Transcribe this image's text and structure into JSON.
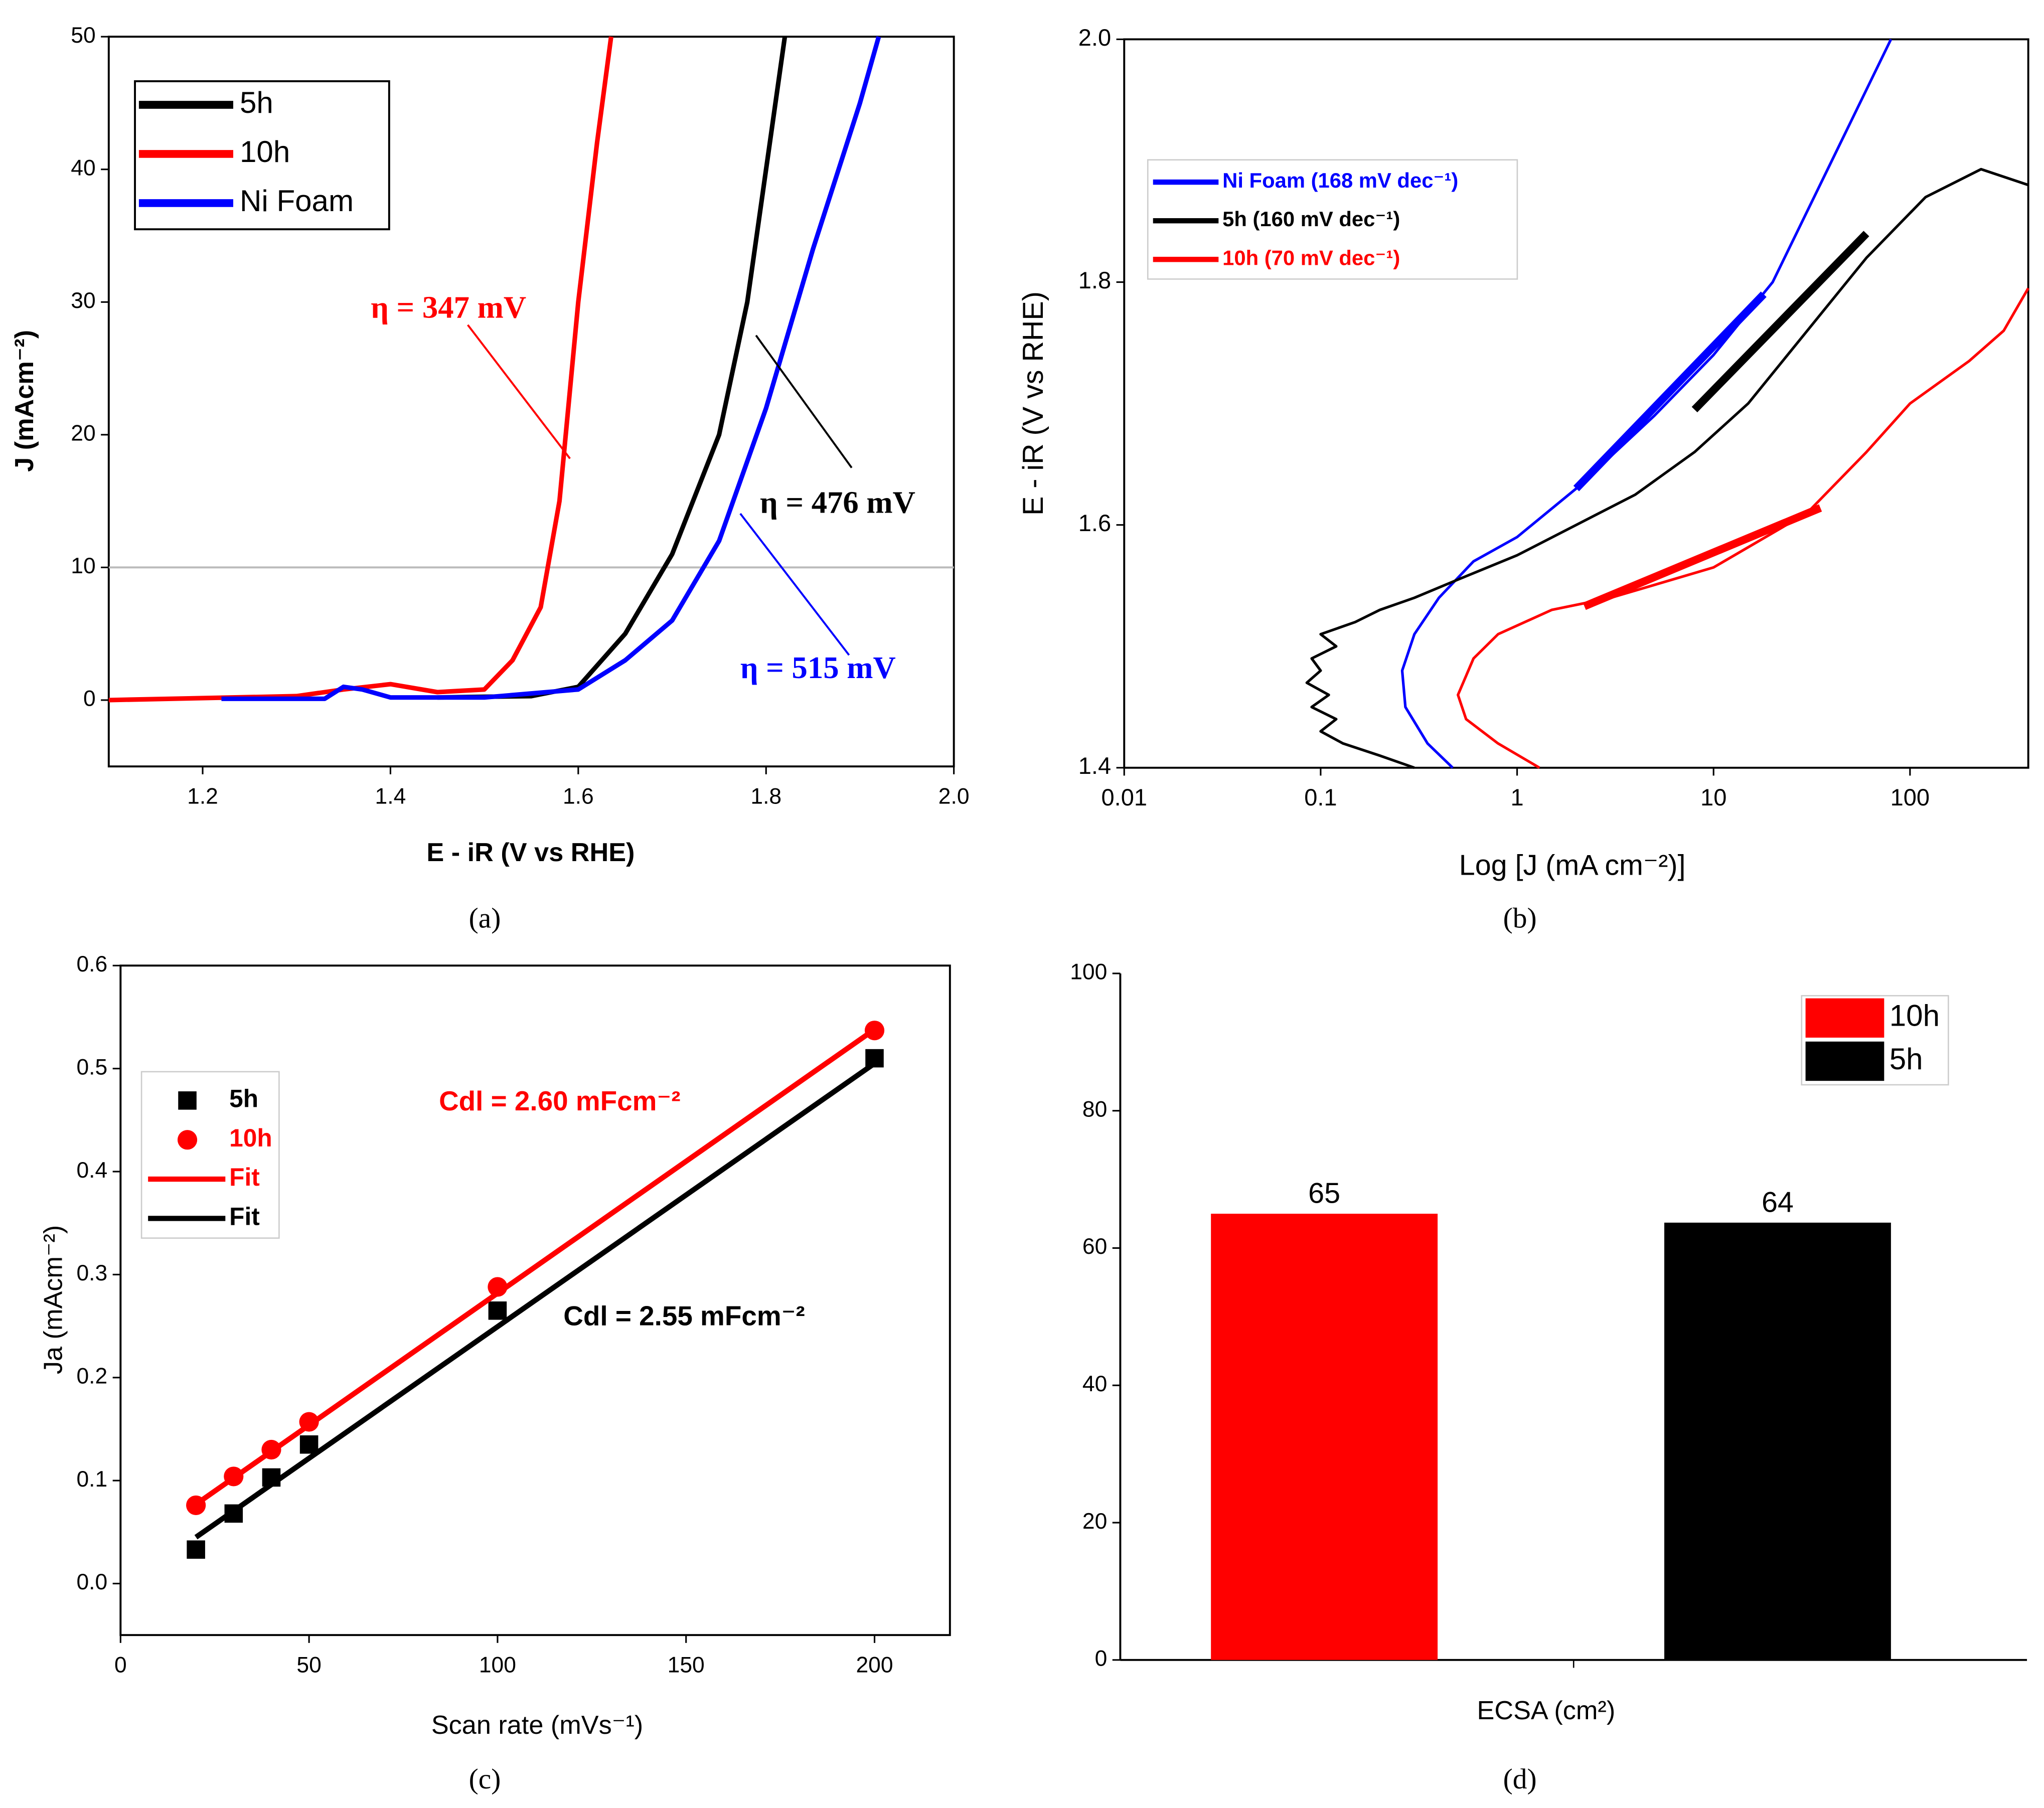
{
  "chart_data": [
    {
      "type": "line",
      "panel_label": "(a)",
      "x_label": "E - iR (V vs RHE)",
      "y_label": "J (mAcm⁻²)",
      "xlim": [
        1.1,
        2.0
      ],
      "xticks": [
        1.2,
        1.4,
        1.6,
        1.8,
        {
          "value": 2.0,
          "label": "2.0"
        }
      ],
      "ylim": [
        -5,
        50
      ],
      "yticks": [
        0,
        10,
        20,
        30,
        40,
        50
      ],
      "hline": 10,
      "legend": "upper left",
      "series": [
        {
          "name": "5h",
          "color": "#000000",
          "x": [
            1.45,
            1.55,
            1.6,
            1.65,
            1.7,
            1.75,
            1.78,
            1.8,
            1.82
          ],
          "values": [
            0.2,
            0.3,
            1,
            5,
            11,
            20,
            30,
            40,
            50
          ]
        },
        {
          "name": "10h",
          "color": "#ff0000",
          "x": [
            1.1,
            1.3,
            1.35,
            1.4,
            1.45,
            1.5,
            1.53,
            1.56,
            1.58,
            1.6,
            1.62,
            1.635
          ],
          "values": [
            0,
            0.3,
            0.8,
            1.2,
            0.6,
            0.8,
            3,
            7,
            15,
            30,
            42,
            50
          ]
        },
        {
          "name": "Ni Foam",
          "color": "#0000ff",
          "x": [
            1.22,
            1.33,
            1.35,
            1.37,
            1.4,
            1.5,
            1.6,
            1.65,
            1.7,
            1.75,
            1.8,
            1.85,
            1.9,
            1.92
          ],
          "values": [
            0.1,
            0.1,
            1,
            0.8,
            0.2,
            0.2,
            0.8,
            3,
            6,
            12,
            22,
            34,
            45,
            50
          ]
        }
      ],
      "annotations": [
        {
          "text": "η = 347 mV",
          "color": "#ff0000"
        },
        {
          "text": "η = 476  mV",
          "color": "#000000"
        },
        {
          "text": "η = 515 mV",
          "color": "#0000ff"
        }
      ]
    },
    {
      "type": "line",
      "panel_label": "(b)",
      "x_label": "Log [J (mA cm⁻²)]",
      "y_label": "E - iR (V vs RHE)",
      "xscale": "log",
      "xlim": [
        0.01,
        400
      ],
      "xticks": [
        0.01,
        0.1,
        1,
        10,
        100
      ],
      "ylim": [
        1.4,
        2.0
      ],
      "yticks": [
        1.4,
        1.6,
        1.8,
        {
          "value": 2.0,
          "label": "2.0"
        }
      ],
      "legend": "upper left",
      "series": [
        {
          "name": "Ni Foam (168 mV dec⁻¹)",
          "color": "#0000ff",
          "x": [
            0.47,
            0.35,
            0.27,
            0.26,
            0.3,
            0.4,
            0.6,
            1,
            2,
            5,
            10,
            20,
            40,
            80
          ],
          "values": [
            1.4,
            1.42,
            1.45,
            1.48,
            1.51,
            1.54,
            1.57,
            1.59,
            1.63,
            1.69,
            1.74,
            1.8,
            1.9,
            2.0
          ]
        },
        {
          "name": "5h (160 mV dec⁻¹)",
          "color": "#000000",
          "x": [
            0.3,
            0.2,
            0.13,
            0.1,
            0.12,
            0.09,
            0.11,
            0.085,
            0.1,
            0.09,
            0.12,
            0.1,
            0.15,
            0.2,
            0.3,
            0.5,
            1,
            2,
            4,
            8,
            15,
            30,
            60,
            120,
            230,
            400
          ],
          "values": [
            1.4,
            1.41,
            1.42,
            1.43,
            1.44,
            1.45,
            1.46,
            1.47,
            1.48,
            1.49,
            1.5,
            1.51,
            1.52,
            1.53,
            1.54,
            1.555,
            1.575,
            1.6,
            1.625,
            1.66,
            1.7,
            1.76,
            1.82,
            1.87,
            1.893,
            1.88
          ]
        },
        {
          "name": "10h (70 mV dec⁻¹)",
          "color": "#ff0000",
          "x": [
            1.3,
            0.8,
            0.55,
            0.5,
            0.6,
            0.8,
            1.5,
            3,
            10,
            30,
            60,
            100,
            200,
            300,
            400
          ],
          "values": [
            1.4,
            1.42,
            1.44,
            1.46,
            1.49,
            1.51,
            1.53,
            1.54,
            1.565,
            1.61,
            1.66,
            1.7,
            1.735,
            1.76,
            1.795
          ]
        }
      ],
      "fits": [
        {
          "color": "#0000ff",
          "x": [
            2,
            18
          ],
          "values": [
            1.63,
            1.79
          ]
        },
        {
          "color": "#000000",
          "x": [
            8,
            60
          ],
          "values": [
            1.695,
            1.84
          ]
        },
        {
          "color": "#ff0000",
          "x": [
            2.2,
            35
          ],
          "values": [
            1.533,
            1.614
          ]
        }
      ]
    },
    {
      "type": "scatter",
      "panel_label": "(c)",
      "x_label": "Scan rate (mVs⁻¹)",
      "y_label": "Ja (mAcm⁻²)",
      "xlim": [
        0,
        220
      ],
      "xticks": [
        0,
        50,
        100,
        150,
        200
      ],
      "ylim": [
        -0.05,
        0.6
      ],
      "yticks": [
        {
          "value": 0.0,
          "label": "0.0"
        },
        0.1,
        0.2,
        0.3,
        0.4,
        0.5,
        0.6
      ],
      "legend": "upper left",
      "series": [
        {
          "name": "5h",
          "color": "#000000",
          "marker": "square",
          "x": [
            20,
            30,
            40,
            50,
            100,
            200
          ],
          "values": [
            0.033,
            0.068,
            0.103,
            0.135,
            0.265,
            0.51
          ]
        },
        {
          "name": "10h",
          "color": "#ff0000",
          "marker": "circle",
          "x": [
            20,
            30,
            40,
            50,
            100,
            200
          ],
          "values": [
            0.076,
            0.104,
            0.13,
            0.157,
            0.288,
            0.537
          ]
        },
        {
          "name": "Fit",
          "color": "#ff0000",
          "marker": "line",
          "x": [
            20,
            200
          ],
          "values": [
            0.077,
            0.538
          ]
        },
        {
          "name": "Fit",
          "color": "#000000",
          "marker": "line",
          "x": [
            20,
            200
          ],
          "values": [
            0.045,
            0.505
          ]
        }
      ],
      "annotations": [
        {
          "text": "Cdl = 2.60 mFcm⁻²",
          "color": "#ff0000"
        },
        {
          "text": "Cdl = 2.55 mFcm⁻²",
          "color": "#000000"
        }
      ]
    },
    {
      "type": "bar",
      "panel_label": "(d)",
      "x_label": "ECSA (cm²)",
      "ylim": [
        0,
        100
      ],
      "yticks": [
        0,
        20,
        40,
        60,
        80,
        100
      ],
      "legend": "upper right",
      "series": [
        {
          "name": "10h",
          "color": "#ff0000",
          "values": [
            65
          ]
        },
        {
          "name": "5h",
          "color": "#000000",
          "values": [
            63.7
          ],
          "value_labels": [
            "64"
          ]
        }
      ]
    }
  ]
}
